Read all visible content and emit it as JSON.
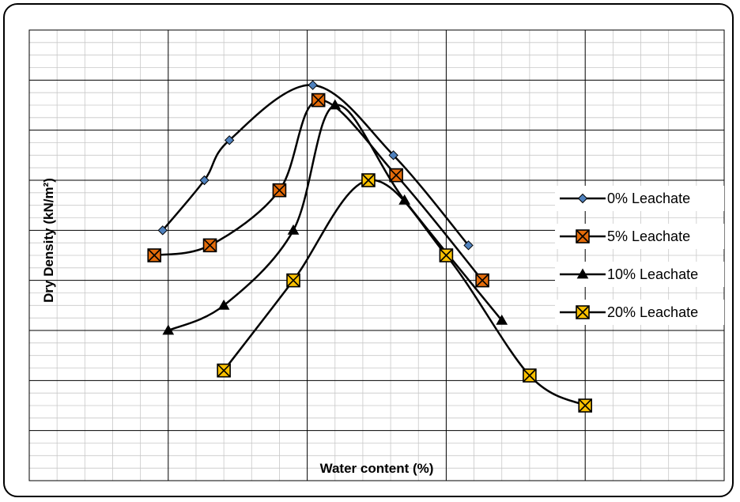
{
  "chart_data": {
    "type": "line",
    "title": "",
    "xlabel": "Water content (%)",
    "ylabel": "Dry Density (kN/m²)",
    "xlim": [
      0,
      25
    ],
    "ylim": [
      0,
      9
    ],
    "grid": true,
    "legend_position": "right",
    "series": [
      {
        "name": "0% Leachate",
        "marker": "diamond",
        "color": "#000000",
        "marker_color": "#4f81bd",
        "x": [
          4.8,
          6.3,
          7.2,
          10.2,
          13.1,
          15.8
        ],
        "y": [
          5.0,
          6.0,
          6.8,
          7.9,
          6.5,
          4.7
        ]
      },
      {
        "name": "5% Leachate",
        "marker": "x-square",
        "color": "#000000",
        "marker_color": "#e46c0a",
        "x": [
          4.5,
          6.5,
          9.0,
          10.4,
          13.2,
          16.3
        ],
        "y": [
          4.5,
          4.7,
          5.8,
          7.6,
          6.1,
          4.0
        ]
      },
      {
        "name": "10% Leachate",
        "marker": "triangle",
        "color": "#000000",
        "marker_color": "#000000",
        "x": [
          5.0,
          7.0,
          9.5,
          11.0,
          13.5,
          17.0
        ],
        "y": [
          3.0,
          3.5,
          5.0,
          7.5,
          5.6,
          3.2
        ]
      },
      {
        "name": "20% Leachate",
        "marker": "x-square",
        "color": "#000000",
        "marker_color": "#f9c000",
        "x": [
          7.0,
          9.5,
          12.2,
          15.0,
          18.0,
          20.0
        ],
        "y": [
          2.2,
          4.0,
          6.0,
          4.5,
          2.1,
          1.5
        ]
      }
    ]
  }
}
